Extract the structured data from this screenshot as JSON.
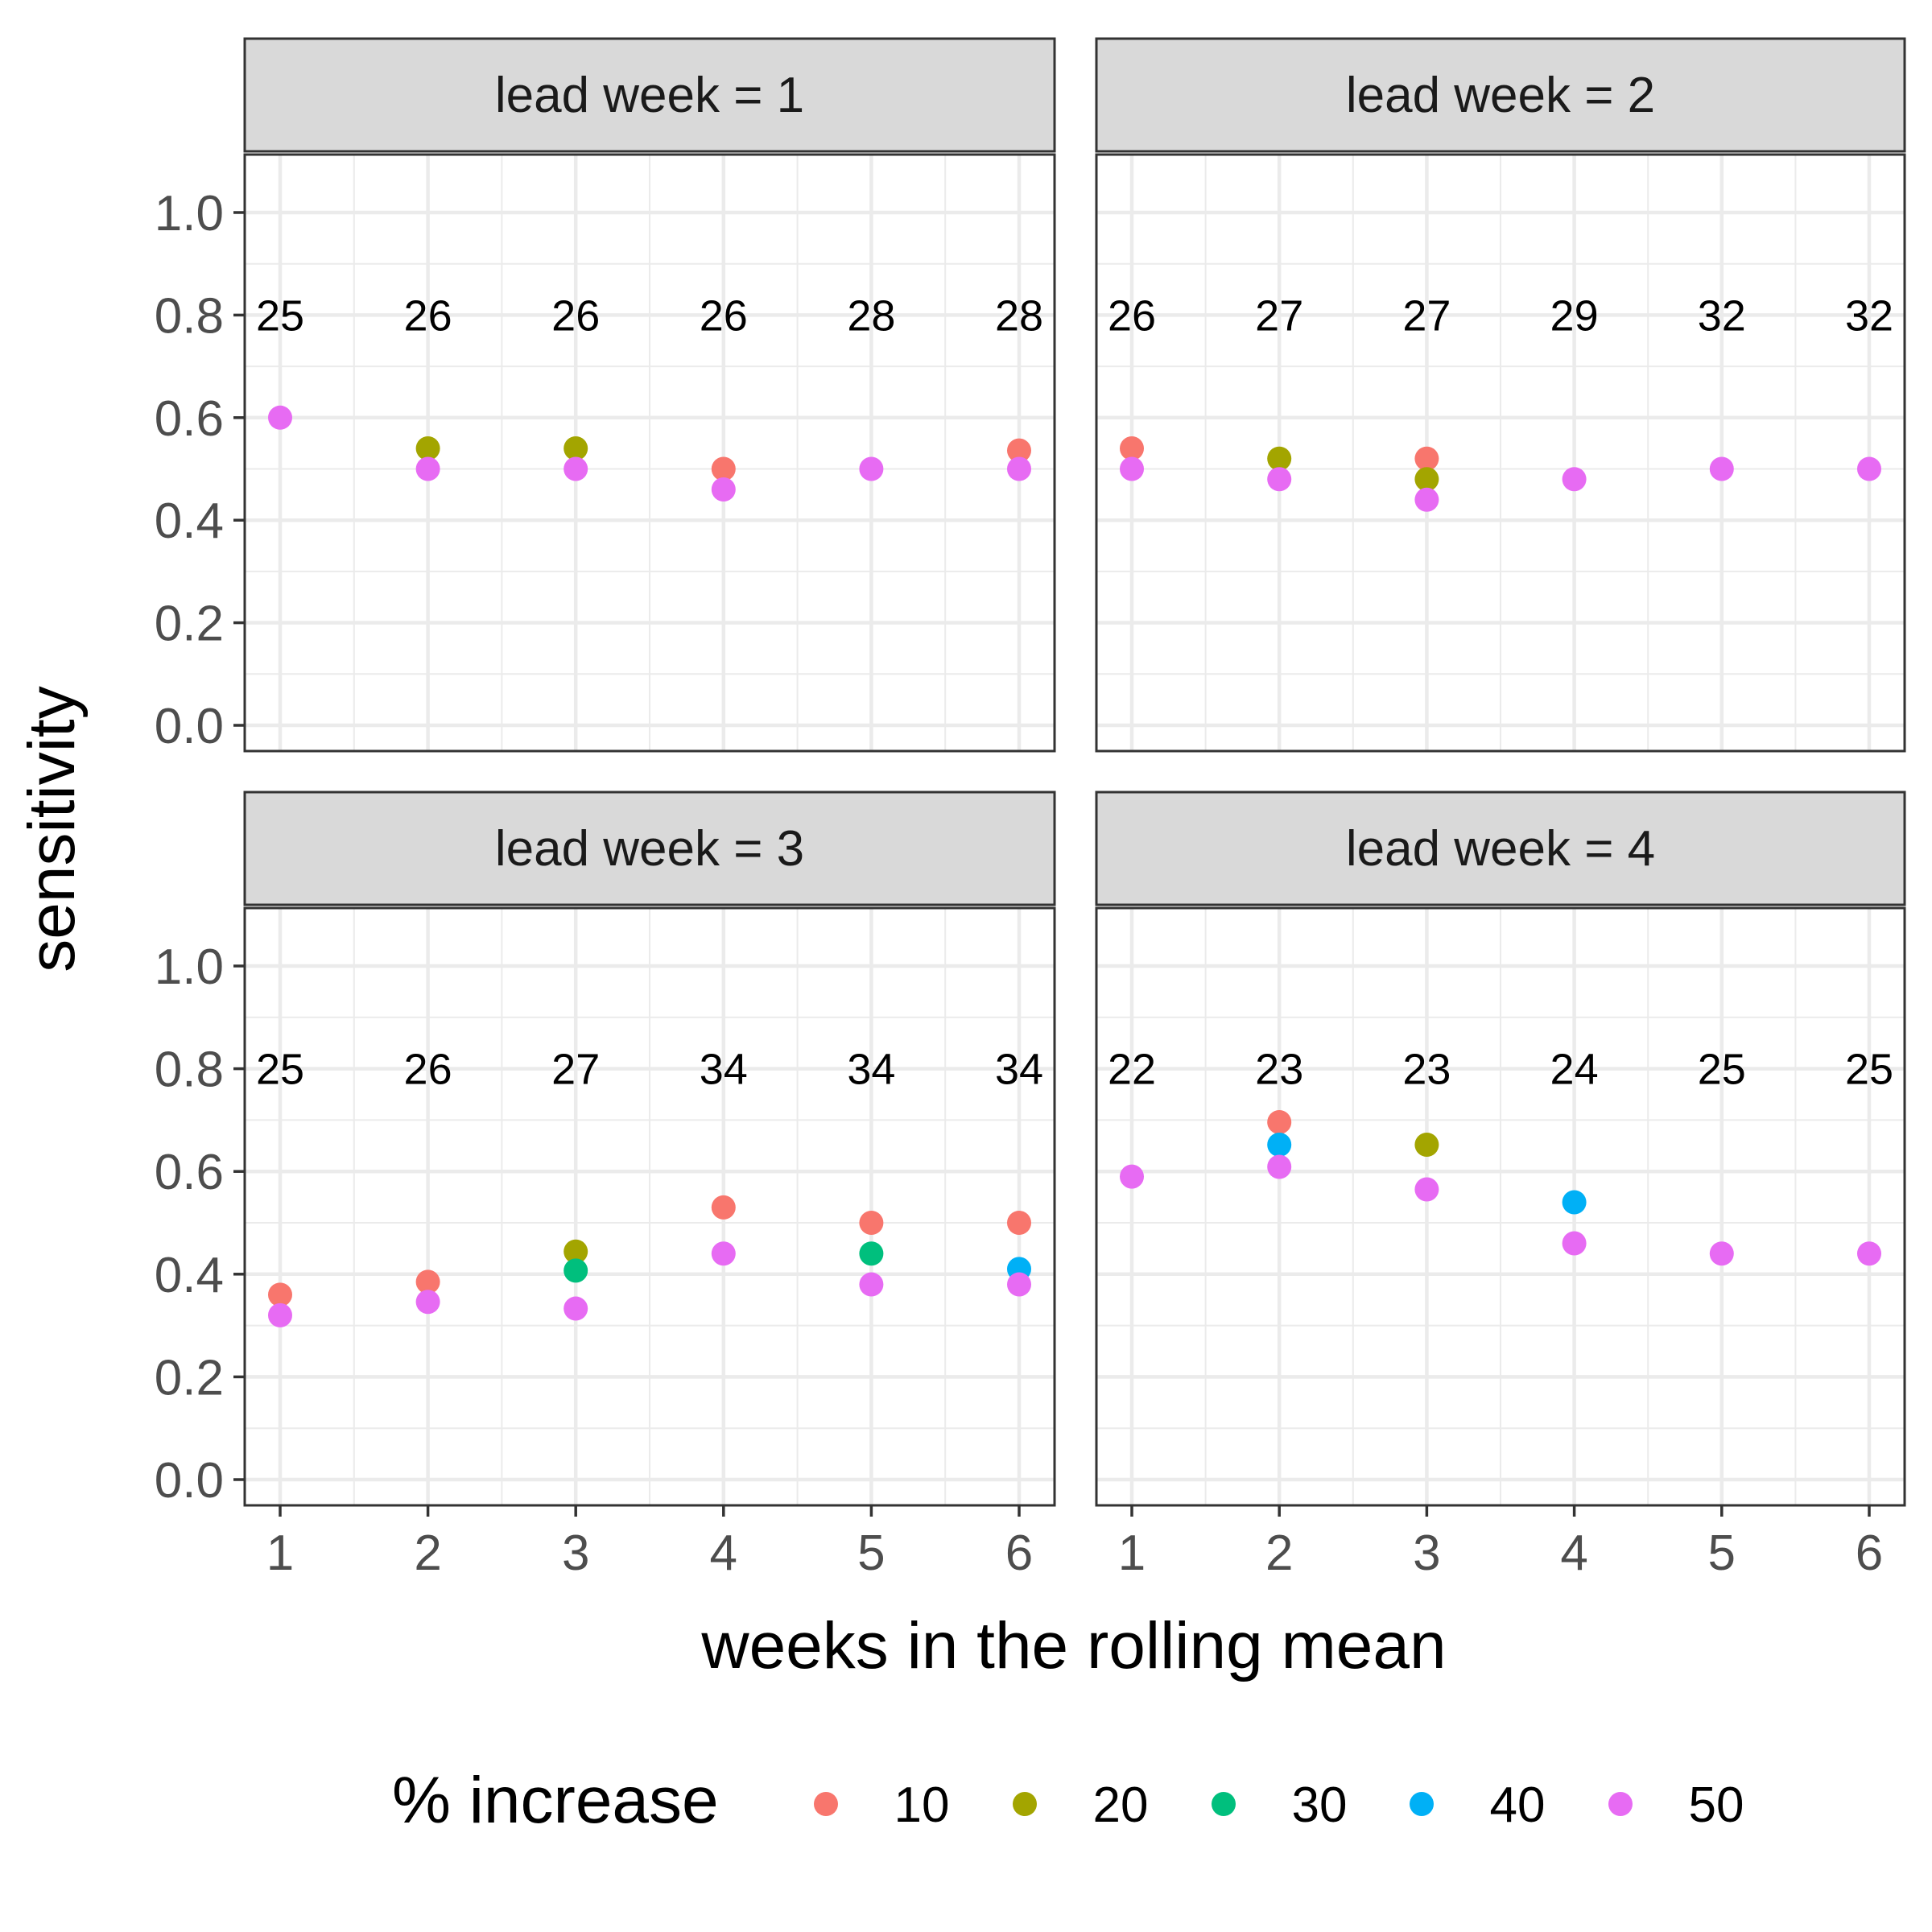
{
  "chart_data": {
    "type": "scatter",
    "xlabel": "weeks in the rolling mean",
    "ylabel": "sensitivity",
    "x_ticks": [
      "1",
      "2",
      "3",
      "4",
      "5",
      "6"
    ],
    "y_ticks": [
      "0.0",
      "0.2",
      "0.4",
      "0.6",
      "0.8",
      "1.0"
    ],
    "ylim": [
      0,
      1
    ],
    "xlim": [
      1,
      6
    ],
    "grid": true,
    "legend": {
      "title": "% increase",
      "position": "bottom",
      "entries": [
        {
          "label": "10",
          "color": "#F8766D"
        },
        {
          "label": "20",
          "color": "#A3A500"
        },
        {
          "label": "30",
          "color": "#00BF7D"
        },
        {
          "label": "40",
          "color": "#00B0F6"
        },
        {
          "label": "50",
          "color": "#E76BF3"
        }
      ]
    },
    "panels": [
      {
        "strip": "lead week = 1",
        "counts": [
          "25",
          "26",
          "26",
          "26",
          "28",
          "28"
        ],
        "points": [
          {
            "x": 1,
            "group": "50",
            "y": 0.6
          },
          {
            "x": 2,
            "group": "20",
            "y": 0.54
          },
          {
            "x": 2,
            "group": "50",
            "y": 0.5
          },
          {
            "x": 3,
            "group": "20",
            "y": 0.54
          },
          {
            "x": 3,
            "group": "50",
            "y": 0.5
          },
          {
            "x": 4,
            "group": "10",
            "y": 0.5
          },
          {
            "x": 4,
            "group": "50",
            "y": 0.46
          },
          {
            "x": 5,
            "group": "50",
            "y": 0.5
          },
          {
            "x": 6,
            "group": "10",
            "y": 0.536
          },
          {
            "x": 6,
            "group": "50",
            "y": 0.5
          }
        ]
      },
      {
        "strip": "lead week = 2",
        "counts": [
          "26",
          "27",
          "27",
          "29",
          "32",
          "32"
        ],
        "points": [
          {
            "x": 1,
            "group": "10",
            "y": 0.54
          },
          {
            "x": 1,
            "group": "50",
            "y": 0.5
          },
          {
            "x": 2,
            "group": "20",
            "y": 0.52
          },
          {
            "x": 2,
            "group": "50",
            "y": 0.48
          },
          {
            "x": 3,
            "group": "10",
            "y": 0.52
          },
          {
            "x": 3,
            "group": "20",
            "y": 0.48
          },
          {
            "x": 3,
            "group": "50",
            "y": 0.44
          },
          {
            "x": 4,
            "group": "50",
            "y": 0.48
          },
          {
            "x": 5,
            "group": "50",
            "y": 0.5
          },
          {
            "x": 6,
            "group": "50",
            "y": 0.5
          }
        ]
      },
      {
        "strip": "lead week = 3",
        "counts": [
          "25",
          "26",
          "27",
          "34",
          "34",
          "34"
        ],
        "points": [
          {
            "x": 1,
            "group": "10",
            "y": 0.36
          },
          {
            "x": 1,
            "group": "50",
            "y": 0.32
          },
          {
            "x": 2,
            "group": "10",
            "y": 0.385
          },
          {
            "x": 2,
            "group": "50",
            "y": 0.346
          },
          {
            "x": 3,
            "group": "20",
            "y": 0.444
          },
          {
            "x": 3,
            "group": "30",
            "y": 0.407
          },
          {
            "x": 3,
            "group": "50",
            "y": 0.333
          },
          {
            "x": 4,
            "group": "10",
            "y": 0.53
          },
          {
            "x": 4,
            "group": "50",
            "y": 0.44
          },
          {
            "x": 5,
            "group": "10",
            "y": 0.5
          },
          {
            "x": 5,
            "group": "30",
            "y": 0.44
          },
          {
            "x": 5,
            "group": "50",
            "y": 0.38
          },
          {
            "x": 6,
            "group": "10",
            "y": 0.5
          },
          {
            "x": 6,
            "group": "40",
            "y": 0.41
          },
          {
            "x": 6,
            "group": "50",
            "y": 0.38
          }
        ]
      },
      {
        "strip": "lead week = 4",
        "counts": [
          "22",
          "23",
          "23",
          "24",
          "25",
          "25"
        ],
        "points": [
          {
            "x": 1,
            "group": "50",
            "y": 0.59
          },
          {
            "x": 2,
            "group": "10",
            "y": 0.696
          },
          {
            "x": 2,
            "group": "40",
            "y": 0.652
          },
          {
            "x": 2,
            "group": "50",
            "y": 0.609
          },
          {
            "x": 3,
            "group": "20",
            "y": 0.652
          },
          {
            "x": 3,
            "group": "50",
            "y": 0.565
          },
          {
            "x": 4,
            "group": "40",
            "y": 0.54
          },
          {
            "x": 4,
            "group": "50",
            "y": 0.46
          },
          {
            "x": 5,
            "group": "50",
            "y": 0.44
          },
          {
            "x": 6,
            "group": "50",
            "y": 0.44
          }
        ]
      }
    ]
  }
}
